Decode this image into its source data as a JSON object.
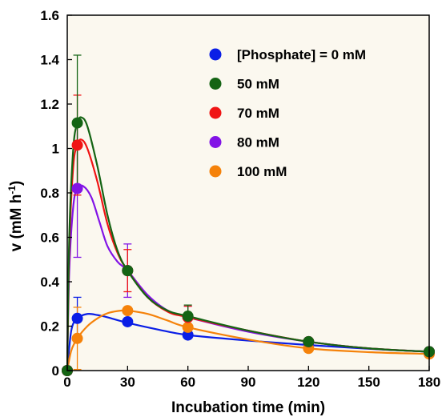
{
  "chart_data": {
    "type": "scatter",
    "xlabel": "Incubation time (min)",
    "ylabel": "v (mM h",
    "ylabel_superscript": "-1",
    "ylabel_suffix": ")",
    "xlim": [
      0,
      180
    ],
    "ylim": [
      0,
      1.6
    ],
    "x_ticks": [
      "0",
      "30",
      "60",
      "90",
      "120",
      "150",
      "180"
    ],
    "y_ticks": [
      "0",
      "0.2",
      "0.4",
      "0.6",
      "0.8",
      "1",
      "1.2",
      "1.4",
      "1.6"
    ],
    "grid": false,
    "legend_position": "top-right",
    "plot_background": "#fbf8ef",
    "series": [
      {
        "name": "[Phosphate] = 0 mM",
        "color": "#0a1ee6",
        "x": [
          0,
          5,
          30,
          60,
          120,
          180
        ],
        "y": [
          0,
          0.235,
          0.22,
          0.16,
          0.125,
          0.085
        ],
        "error": [
          0,
          0.095,
          0,
          0,
          0,
          0
        ],
        "fit_x": [
          0,
          2,
          5,
          10,
          15,
          20,
          30,
          45,
          60,
          90,
          120,
          150,
          180
        ],
        "fit_y": [
          0,
          0.18,
          0.235,
          0.255,
          0.25,
          0.24,
          0.215,
          0.185,
          0.16,
          0.135,
          0.115,
          0.098,
          0.085
        ]
      },
      {
        "name": "50 mM",
        "color": "#146414",
        "x": [
          0,
          5,
          30,
          60,
          120,
          180
        ],
        "y": [
          0,
          1.115,
          0.45,
          0.245,
          0.13,
          0.085
        ],
        "error": [
          0,
          0.305,
          0,
          0.05,
          0,
          0
        ],
        "fit_x": [
          0,
          1,
          3,
          5,
          7,
          10,
          15,
          20,
          25,
          30,
          40,
          50,
          60,
          90,
          120,
          150,
          180
        ],
        "fit_y": [
          0,
          0.6,
          1.0,
          1.115,
          1.14,
          1.1,
          0.92,
          0.7,
          0.54,
          0.45,
          0.33,
          0.27,
          0.245,
          0.18,
          0.13,
          0.1,
          0.085
        ]
      },
      {
        "name": "70 mM",
        "color": "#f01414",
        "x": [
          0,
          5,
          30,
          60,
          120,
          180
        ],
        "y": [
          0,
          1.015,
          0.45,
          0.24,
          0.13,
          0.085
        ],
        "error": [
          0,
          0.225,
          0.095,
          0.05,
          0,
          0
        ],
        "fit_x": [
          0,
          1,
          3,
          5,
          7,
          10,
          15,
          20,
          25,
          30,
          40,
          50,
          60,
          90,
          120,
          150,
          180
        ],
        "fit_y": [
          0,
          0.55,
          0.92,
          1.015,
          1.04,
          1.0,
          0.85,
          0.66,
          0.53,
          0.45,
          0.33,
          0.265,
          0.24,
          0.18,
          0.13,
          0.1,
          0.085
        ]
      },
      {
        "name": "80 mM",
        "color": "#8214e6",
        "x": [
          0,
          5,
          30,
          60,
          120,
          180
        ],
        "y": [
          0,
          0.82,
          0.45,
          0.24,
          0.13,
          0.085
        ],
        "error": [
          0,
          0.31,
          0.12,
          0.05,
          0,
          0
        ],
        "fit_x": [
          0,
          1,
          3,
          5,
          8,
          12,
          16,
          20,
          25,
          30,
          40,
          50,
          60,
          90,
          120,
          150,
          180
        ],
        "fit_y": [
          0,
          0.45,
          0.74,
          0.82,
          0.83,
          0.78,
          0.67,
          0.56,
          0.49,
          0.45,
          0.34,
          0.27,
          0.24,
          0.175,
          0.13,
          0.1,
          0.085
        ]
      },
      {
        "name": "100 mM",
        "color": "#f5820a",
        "x": [
          0,
          5,
          30,
          60,
          120,
          180
        ],
        "y": [
          0,
          0.145,
          0.27,
          0.195,
          0.1,
          0.075
        ],
        "error": [
          0,
          0.14,
          0,
          0,
          0,
          0
        ],
        "fit_x": [
          0,
          2,
          5,
          10,
          15,
          20,
          25,
          30,
          40,
          50,
          60,
          90,
          120,
          150,
          180
        ],
        "fit_y": [
          0,
          0.09,
          0.145,
          0.2,
          0.235,
          0.258,
          0.268,
          0.27,
          0.255,
          0.225,
          0.195,
          0.14,
          0.1,
          0.083,
          0.075
        ]
      }
    ]
  }
}
